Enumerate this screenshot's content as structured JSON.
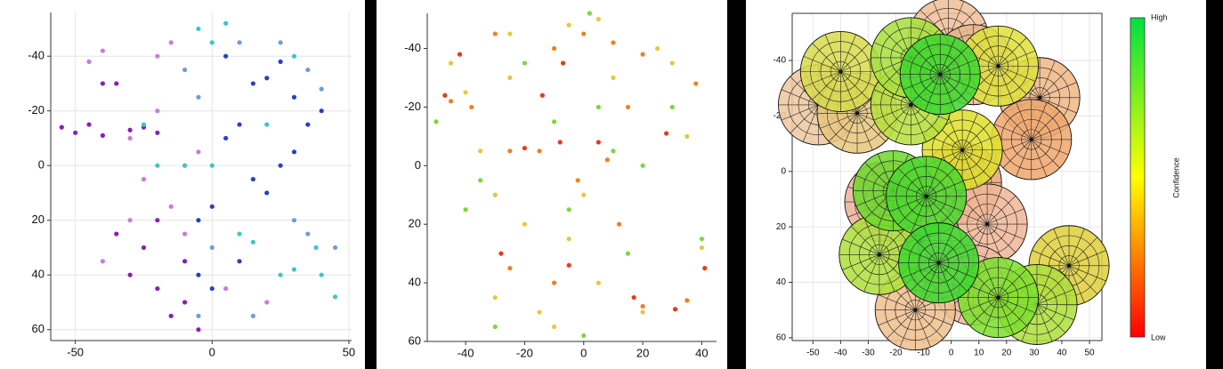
{
  "chart_data": [
    {
      "type": "scatter",
      "xlim": [
        -59,
        51
      ],
      "ylim": [
        64,
        -56
      ],
      "xticks": [
        -50,
        0,
        50
      ],
      "yticks": [
        -40,
        -20,
        0,
        20,
        40,
        60
      ],
      "grid": true,
      "series": [
        {
          "color": "#8a1fb0",
          "x": [
            -55,
            -50,
            -45,
            -40,
            -30,
            -25,
            -20,
            -35,
            -25,
            -20,
            -15,
            -10,
            -30,
            -5,
            -20,
            -40,
            -10,
            -35
          ],
          "y": [
            -14,
            -12,
            -15,
            -11,
            -13,
            -14,
            -12,
            -30,
            30,
            45,
            55,
            50,
            40,
            60,
            20,
            -30,
            35,
            25
          ]
        },
        {
          "color": "#c77be0",
          "x": [
            -45,
            -40,
            -20,
            -15,
            -30,
            -25,
            -15,
            -10,
            -30,
            20,
            -40,
            -20,
            5,
            -5,
            -10
          ],
          "y": [
            -38,
            -42,
            -40,
            -45,
            -10,
            5,
            15,
            25,
            20,
            50,
            35,
            -20,
            45,
            -5,
            0
          ]
        },
        {
          "color": "#2b3fc0",
          "x": [
            15,
            20,
            25,
            30,
            10,
            5,
            15,
            20,
            0,
            -5,
            10,
            0,
            30,
            25,
            -5,
            35,
            5,
            40
          ],
          "y": [
            -30,
            -32,
            -38,
            -25,
            -15,
            -10,
            5,
            10,
            15,
            20,
            35,
            45,
            -5,
            0,
            40,
            -15,
            -40,
            -20
          ]
        },
        {
          "color": "#3dc6c4",
          "x": [
            0,
            -5,
            5,
            -10,
            -20,
            0,
            10,
            15,
            25,
            30,
            40,
            45,
            -25,
            20,
            30,
            38
          ],
          "y": [
            -45,
            -50,
            -52,
            0,
            0,
            0,
            25,
            28,
            40,
            38,
            40,
            48,
            -15,
            -15,
            -40,
            30
          ]
        },
        {
          "color": "#6f9be0",
          "x": [
            -10,
            -5,
            10,
            25,
            35,
            40,
            30,
            35,
            45,
            0,
            15,
            -5
          ],
          "y": [
            -35,
            -25,
            -45,
            -45,
            -35,
            -28,
            20,
            25,
            30,
            30,
            55,
            55
          ]
        }
      ]
    },
    {
      "type": "scatter",
      "xlim": [
        -53,
        45
      ],
      "ylim": [
        60,
        -52
      ],
      "xticks": [
        -40,
        -20,
        0,
        20,
        40
      ],
      "yticks": [
        -40,
        -20,
        0,
        20,
        40,
        60
      ],
      "grid": false,
      "series": [
        {
          "color": "#e83a1a",
          "x": [
            -42,
            -7,
            -14,
            -20,
            -8,
            -28,
            -5,
            5,
            17,
            31,
            41,
            28,
            -47
          ],
          "y": [
            -38,
            -35,
            -24,
            -6,
            -8,
            30,
            34,
            -8,
            45,
            49,
            35,
            -11,
            -24
          ]
        },
        {
          "color": "#f08020",
          "x": [
            -45,
            -38,
            -10,
            0,
            10,
            20,
            -25,
            -15,
            -25,
            -10,
            20,
            35,
            15,
            12,
            -30,
            38,
            -2,
            8
          ],
          "y": [
            -22,
            -20,
            -40,
            -45,
            -42,
            -38,
            -5,
            -5,
            35,
            40,
            48,
            46,
            -20,
            20,
            -45,
            -28,
            5,
            -2
          ]
        },
        {
          "color": "#e6c83a",
          "x": [
            -40,
            -25,
            -5,
            5,
            25,
            35,
            -35,
            -30,
            -20,
            -15,
            -5,
            0,
            -30,
            20,
            40,
            -25,
            10,
            30,
            -10,
            5,
            -45
          ],
          "y": [
            -25,
            -45,
            -48,
            -50,
            -40,
            -10,
            -5,
            10,
            20,
            50,
            25,
            10,
            45,
            50,
            28,
            -30,
            -30,
            -35,
            55,
            40,
            -35
          ]
        },
        {
          "color": "#7ad83a",
          "x": [
            -50,
            -35,
            -20,
            10,
            30,
            20,
            -5,
            -40,
            0,
            40,
            -10,
            5,
            15,
            -30,
            2
          ],
          "y": [
            -15,
            5,
            -35,
            -5,
            -20,
            0,
            15,
            15,
            58,
            25,
            -15,
            -20,
            30,
            55,
            -52
          ]
        }
      ]
    },
    {
      "type": "bubble",
      "xlim": [
        -57.5,
        54.5
      ],
      "ylim": [
        61,
        -57
      ],
      "xticks": [
        -50,
        -40,
        -30,
        -20,
        -10,
        0,
        10,
        20,
        30,
        40,
        50
      ],
      "yticks": [
        -40,
        -20,
        0,
        20,
        40,
        60
      ],
      "grid": true,
      "radius": 14.5,
      "x": [
        -1,
        -48,
        8,
        3.7,
        -24,
        13,
        -11,
        8,
        -13,
        32,
        29,
        -34,
        -40,
        17,
        4,
        42.6,
        -14.6,
        -26,
        31,
        -14.6,
        17,
        -21,
        -9,
        -4.5,
        -4
      ],
      "y": [
        -48,
        -24,
        -38.5,
        4,
        11,
        19,
        25,
        41,
        50,
        -26.6,
        -11.5,
        -21,
        -36,
        -38,
        -7.7,
        34,
        -24,
        30,
        48,
        -41,
        45.5,
        7,
        9,
        33,
        -35
      ],
      "colors": [
        "#f0c09a",
        "#eec8a0",
        "#e8b890",
        "#e8a47c",
        "#ecb49a",
        "#f0b898",
        "#ecc0a0",
        "#eebca0",
        "#f0c090",
        "#f0b888",
        "#f0a870",
        "#e8c880",
        "#d8dc50",
        "#e0e040",
        "#e0e030",
        "#e0d040",
        "#b8e040",
        "#b0e040",
        "#b0e040",
        "#a8e040",
        "#80e030",
        "#70d830",
        "#50d830",
        "#40d830",
        "#40d830"
      ],
      "colorbar": {
        "label": "Confidence",
        "high_label": "High",
        "low_label": "Low",
        "colors": [
          "#ff0000",
          "#ffff00",
          "#00e040"
        ]
      }
    }
  ]
}
